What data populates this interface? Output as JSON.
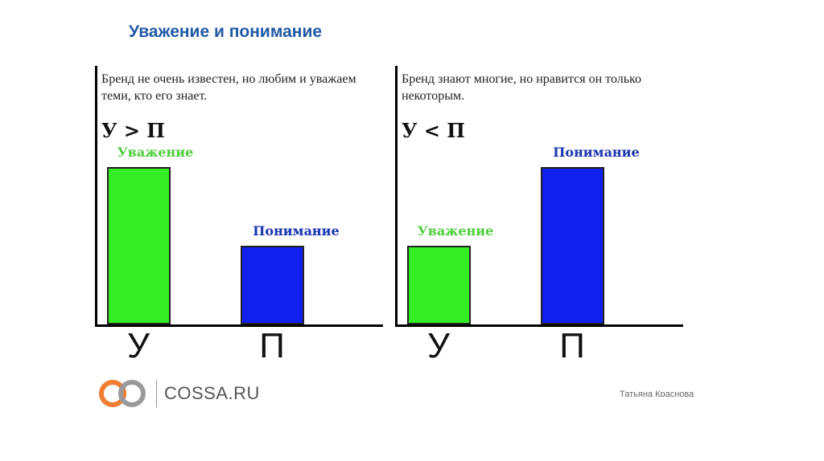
{
  "slide": {
    "title": "Уважение и понимание"
  },
  "footer": {
    "logo_text": "COSSA.RU",
    "author": "Татьяна Краснова"
  },
  "colors": {
    "title": "#1f5aa6",
    "respect_bar": "#33ee22",
    "respect_label": "#4ccf3a",
    "understanding_bar": "#1020ee",
    "understanding_label": "#1a34b0",
    "logo_orange": "#ee7d31",
    "logo_gray": "#9a9a9a"
  },
  "chart_data": [
    {
      "type": "bar",
      "caption": "Бренд не очень известен, но любим и уважаем теми, кто его знает.",
      "formula": "У > П",
      "categories": [
        "У",
        "П"
      ],
      "series": [
        {
          "name": "Уважение",
          "value": 2
        },
        {
          "name": "Понимание",
          "value": 1
        }
      ],
      "ylim": [
        0,
        2.2
      ]
    },
    {
      "type": "bar",
      "caption": "Бренд знают многие, но нравится он только некоторым.",
      "formula": "У < П",
      "categories": [
        "У",
        "П"
      ],
      "series": [
        {
          "name": "Уважение",
          "value": 1
        },
        {
          "name": "Понимание",
          "value": 2
        }
      ],
      "ylim": [
        0,
        2.2
      ]
    }
  ]
}
